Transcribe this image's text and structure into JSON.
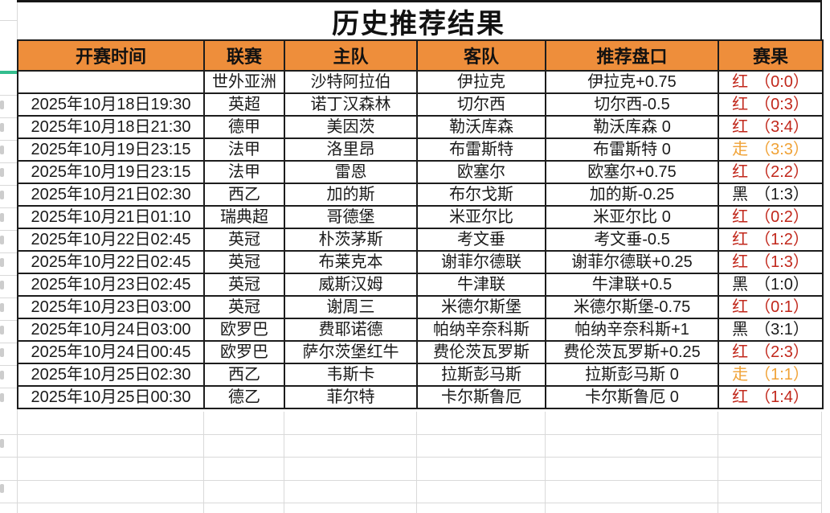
{
  "title": "历史推荐结果",
  "table": {
    "columns": [
      "开赛时间",
      "联赛",
      "主队",
      "客队",
      "推荐盘口",
      "赛果"
    ],
    "rows": [
      {
        "time": "",
        "league": "世外亚洲",
        "home": "沙特阿拉伯",
        "away": "伊拉克",
        "handicap": "伊拉克+0.75",
        "result_flag": "红",
        "result_score": "（0:0）",
        "result_type": "red"
      },
      {
        "time": "2025年10月18日19:30",
        "league": "英超",
        "home": "诺丁汉森林",
        "away": "切尔西",
        "handicap": "切尔西-0.5",
        "result_flag": "红",
        "result_score": "（0:3）",
        "result_type": "red"
      },
      {
        "time": "2025年10月18日21:30",
        "league": "德甲",
        "home": "美因茨",
        "away": "勒沃库森",
        "handicap": "勒沃库森 0",
        "result_flag": "红",
        "result_score": "（3:4）",
        "result_type": "red"
      },
      {
        "time": "2025年10月19日23:15",
        "league": "法甲",
        "home": "洛里昂",
        "away": "布雷斯特",
        "handicap": "布雷斯特 0",
        "result_flag": "走",
        "result_score": "（3:3）",
        "result_type": "push"
      },
      {
        "time": "2025年10月19日23:15",
        "league": "法甲",
        "home": "雷恩",
        "away": "欧塞尔",
        "handicap": "欧塞尔+0.75",
        "result_flag": "红",
        "result_score": "（2:2）",
        "result_type": "red"
      },
      {
        "time": "2025年10月21日02:30",
        "league": "西乙",
        "home": "加的斯",
        "away": "布尔戈斯",
        "handicap": "加的斯-0.25",
        "result_flag": "黑",
        "result_score": "（1:3）",
        "result_type": "black"
      },
      {
        "time": "2025年10月21日01:10",
        "league": "瑞典超",
        "home": "哥德堡",
        "away": "米亚尔比",
        "handicap": "米亚尔比 0",
        "result_flag": "红",
        "result_score": "（0:2）",
        "result_type": "red"
      },
      {
        "time": "2025年10月22日02:45",
        "league": "英冠",
        "home": "朴茨茅斯",
        "away": "考文垂",
        "handicap": "考文垂-0.5",
        "result_flag": "红",
        "result_score": "（1:2）",
        "result_type": "red"
      },
      {
        "time": "2025年10月22日02:45",
        "league": "英冠",
        "home": "布莱克本",
        "away": "谢菲尔德联",
        "handicap": "谢菲尔德联+0.25",
        "result_flag": "红",
        "result_score": "（1:3）",
        "result_type": "red"
      },
      {
        "time": "2025年10月23日02:45",
        "league": "英冠",
        "home": "威斯汉姆",
        "away": "牛津联",
        "handicap": "牛津联+0.5",
        "result_flag": "黑",
        "result_score": "（1:0）",
        "result_type": "black"
      },
      {
        "time": "2025年10月23日03:00",
        "league": "英冠",
        "home": "谢周三",
        "away": "米德尔斯堡",
        "handicap": "米德尔斯堡-0.75",
        "result_flag": "红",
        "result_score": "（0:1）",
        "result_type": "red"
      },
      {
        "time": "2025年10月24日03:00",
        "league": "欧罗巴",
        "home": "费耶诺德",
        "away": "帕纳辛奈科斯",
        "handicap": "帕纳辛奈科斯+1",
        "result_flag": "黑",
        "result_score": "（3:1）",
        "result_type": "black"
      },
      {
        "time": "2025年10月24日00:45",
        "league": "欧罗巴",
        "home": "萨尔茨堡红牛",
        "away": "费伦茨瓦罗斯",
        "handicap": "费伦茨瓦罗斯+0.25",
        "result_flag": "红",
        "result_score": "（2:3）",
        "result_type": "red"
      },
      {
        "time": "2025年10月25日02:30",
        "league": "西乙",
        "home": "韦斯卡",
        "away": "拉斯彭马斯",
        "handicap": "拉斯彭马斯 0",
        "result_flag": "走",
        "result_score": "（1:1）",
        "result_type": "push"
      },
      {
        "time": "2025年10月25日00:30",
        "league": "德乙",
        "home": "菲尔特",
        "away": "卡尔斯鲁厄",
        "handicap": "卡尔斯鲁厄 0",
        "result_flag": "红",
        "result_score": "（1:4）",
        "result_type": "red"
      }
    ]
  },
  "colors": {
    "header_bg": "#EE8E3B",
    "result_red": "#C1271B",
    "result_push": "#F0A236",
    "result_black": "#1B1B1B",
    "freeze_indicator_green": "#33BD8E"
  }
}
